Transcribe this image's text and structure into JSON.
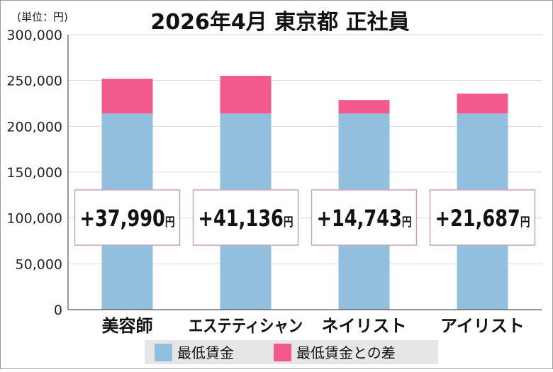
{
  "chart_data": {
    "type": "bar",
    "stacked": true,
    "title": "2026年4月 東京都 正社員",
    "unit_label": "(単位：円)",
    "categories": [
      "美容師",
      "エステティシャン",
      "ネイリスト",
      "アイリスト"
    ],
    "series": [
      {
        "name": "最低賃金",
        "color": "#93bfdf",
        "values": [
          214000,
          214000,
          214000,
          214000
        ]
      },
      {
        "name": "最低賃金との差",
        "color": "#f25a8d",
        "values": [
          37990,
          41136,
          14743,
          21687
        ]
      }
    ],
    "annotations": [
      {
        "value": "+37,990",
        "unit": "円"
      },
      {
        "value": "+41,136",
        "unit": "円"
      },
      {
        "value": "+14,743",
        "unit": "円"
      },
      {
        "value": "+21,687",
        "unit": "円"
      }
    ],
    "ylim": [
      0,
      300000
    ],
    "yticks": [
      {
        "value": 0,
        "label": "0"
      },
      {
        "value": 50000,
        "label": "50,000"
      },
      {
        "value": 100000,
        "label": "100,000"
      },
      {
        "value": 150000,
        "label": "150,000"
      },
      {
        "value": 200000,
        "label": "200,000"
      },
      {
        "value": 250000,
        "label": "250,000"
      },
      {
        "value": 300000,
        "label": "300,000"
      }
    ],
    "grid": true,
    "legend_position": "bottom"
  }
}
